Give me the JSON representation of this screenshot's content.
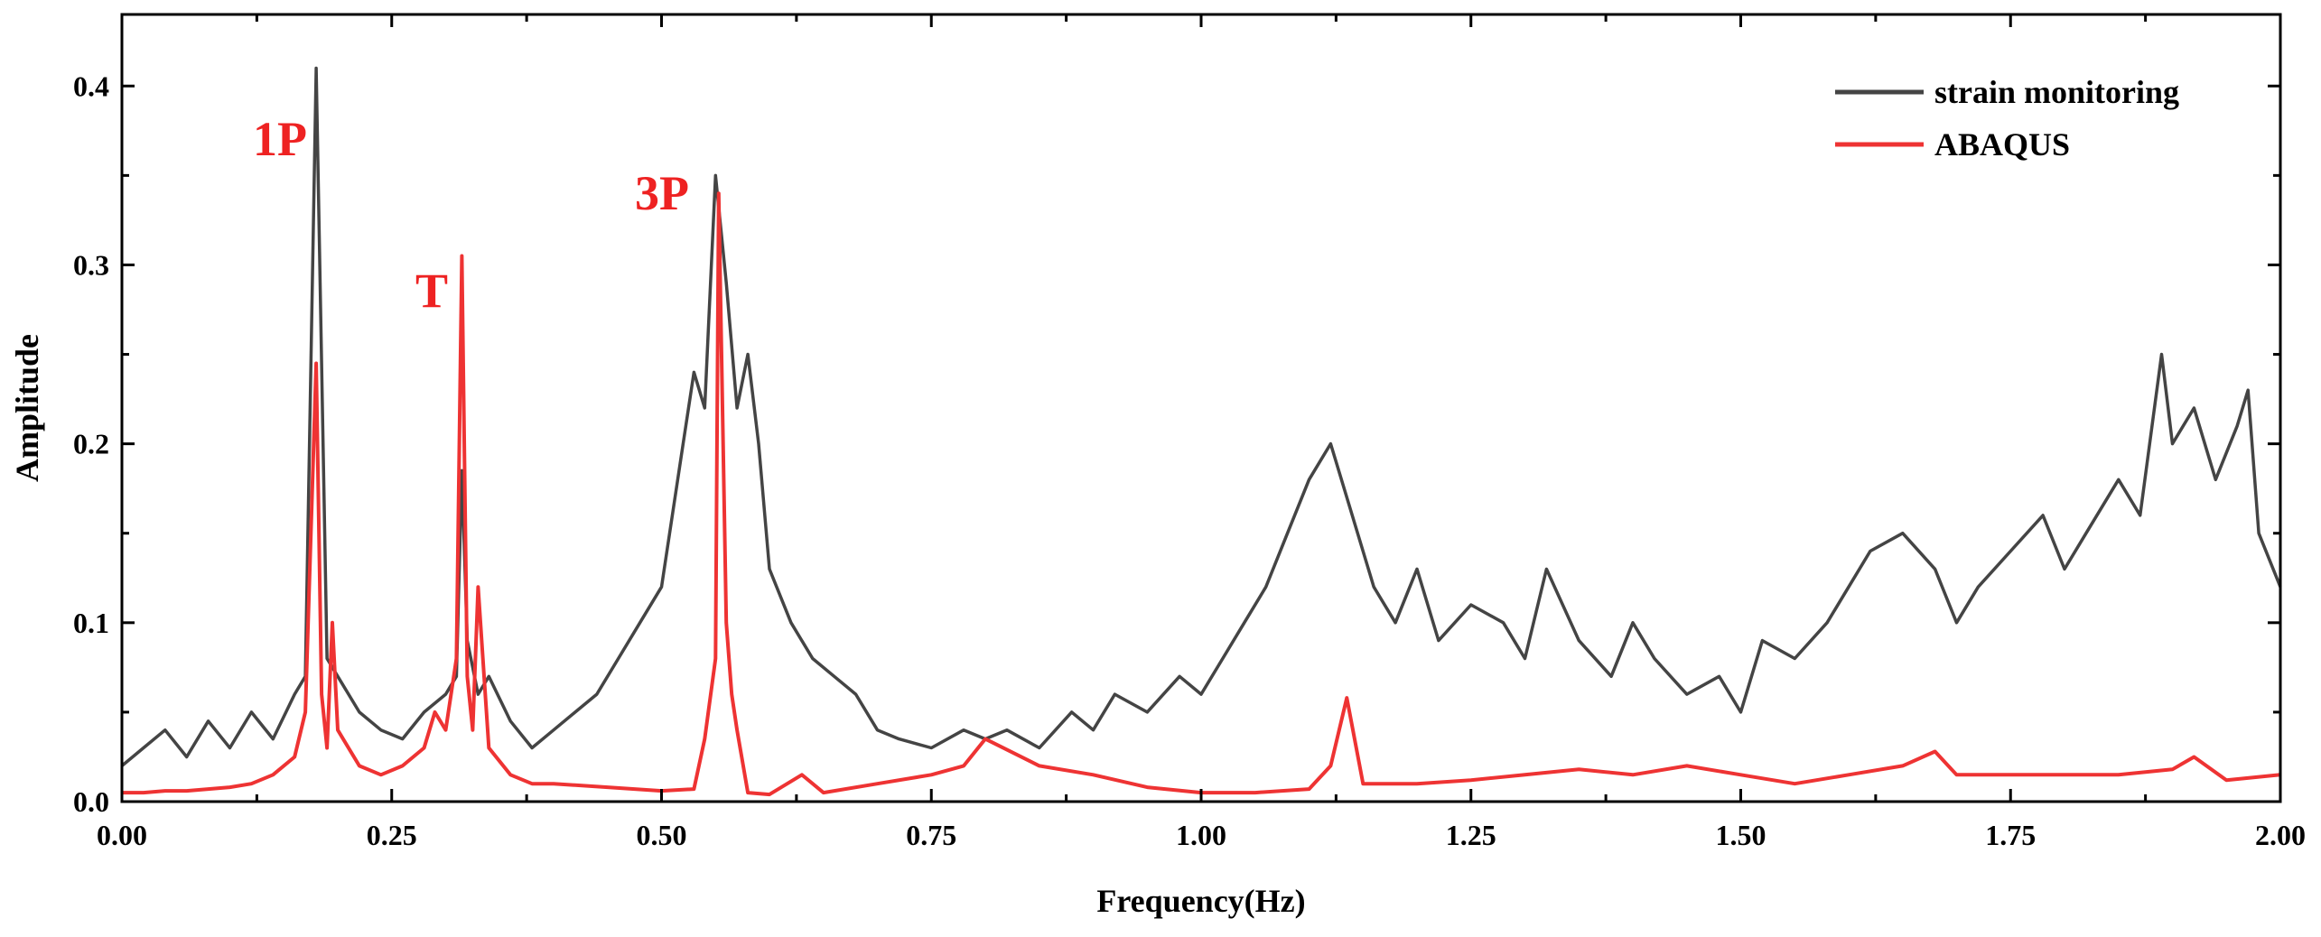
{
  "chart_data": {
    "type": "line",
    "title": "",
    "xlabel": "Frequency(Hz)",
    "ylabel": "Amplitude",
    "xlim": [
      0,
      2.0
    ],
    "ylim": [
      0,
      0.44
    ],
    "x_ticks": [
      "0.00",
      "0.25",
      "0.50",
      "0.75",
      "1.00",
      "1.25",
      "1.50",
      "1.75",
      "2.00"
    ],
    "y_ticks": [
      "0.0",
      "0.1",
      "0.2",
      "0.3",
      "0.4"
    ],
    "grid": false,
    "legend_position": "top-right",
    "annotations": [
      {
        "text": "1P",
        "x": 0.18,
        "color": "#ee2222"
      },
      {
        "text": "T",
        "x": 0.315,
        "color": "#ee2222"
      },
      {
        "text": "3P",
        "x": 0.553,
        "color": "#ee2222"
      }
    ],
    "series": [
      {
        "name": "strain monitoring",
        "color": "#444444",
        "x": [
          0.0,
          0.02,
          0.04,
          0.06,
          0.08,
          0.1,
          0.12,
          0.14,
          0.16,
          0.17,
          0.18,
          0.19,
          0.2,
          0.22,
          0.24,
          0.26,
          0.28,
          0.3,
          0.31,
          0.315,
          0.32,
          0.33,
          0.34,
          0.36,
          0.38,
          0.4,
          0.42,
          0.44,
          0.46,
          0.48,
          0.5,
          0.52,
          0.53,
          0.54,
          0.55,
          0.56,
          0.57,
          0.58,
          0.59,
          0.6,
          0.62,
          0.64,
          0.66,
          0.68,
          0.7,
          0.72,
          0.75,
          0.78,
          0.8,
          0.82,
          0.85,
          0.88,
          0.9,
          0.92,
          0.95,
          0.98,
          1.0,
          1.02,
          1.04,
          1.06,
          1.08,
          1.1,
          1.12,
          1.14,
          1.16,
          1.18,
          1.2,
          1.22,
          1.25,
          1.28,
          1.3,
          1.32,
          1.35,
          1.38,
          1.4,
          1.42,
          1.45,
          1.48,
          1.5,
          1.52,
          1.55,
          1.58,
          1.6,
          1.62,
          1.65,
          1.68,
          1.7,
          1.72,
          1.75,
          1.78,
          1.8,
          1.82,
          1.85,
          1.87,
          1.89,
          1.9,
          1.92,
          1.94,
          1.96,
          1.97,
          1.98,
          2.0
        ],
        "values": [
          0.02,
          0.03,
          0.04,
          0.025,
          0.045,
          0.03,
          0.05,
          0.035,
          0.06,
          0.07,
          0.41,
          0.08,
          0.07,
          0.05,
          0.04,
          0.035,
          0.05,
          0.06,
          0.07,
          0.185,
          0.09,
          0.06,
          0.07,
          0.045,
          0.03,
          0.04,
          0.05,
          0.06,
          0.08,
          0.1,
          0.12,
          0.2,
          0.24,
          0.22,
          0.35,
          0.29,
          0.22,
          0.25,
          0.2,
          0.13,
          0.1,
          0.08,
          0.07,
          0.06,
          0.04,
          0.035,
          0.03,
          0.04,
          0.035,
          0.04,
          0.03,
          0.05,
          0.04,
          0.06,
          0.05,
          0.07,
          0.06,
          0.08,
          0.1,
          0.12,
          0.15,
          0.18,
          0.2,
          0.16,
          0.12,
          0.1,
          0.13,
          0.09,
          0.11,
          0.1,
          0.08,
          0.13,
          0.09,
          0.07,
          0.1,
          0.08,
          0.06,
          0.07,
          0.05,
          0.09,
          0.08,
          0.1,
          0.12,
          0.14,
          0.15,
          0.13,
          0.1,
          0.12,
          0.14,
          0.16,
          0.13,
          0.15,
          0.18,
          0.16,
          0.25,
          0.2,
          0.22,
          0.18,
          0.21,
          0.23,
          0.15,
          0.12
        ]
      },
      {
        "name": "ABAQUS",
        "color": "#ee3333",
        "x": [
          0.0,
          0.02,
          0.04,
          0.06,
          0.08,
          0.1,
          0.12,
          0.14,
          0.16,
          0.17,
          0.18,
          0.185,
          0.19,
          0.195,
          0.2,
          0.22,
          0.24,
          0.26,
          0.28,
          0.29,
          0.3,
          0.31,
          0.315,
          0.32,
          0.325,
          0.33,
          0.34,
          0.36,
          0.38,
          0.4,
          0.45,
          0.5,
          0.53,
          0.54,
          0.55,
          0.553,
          0.56,
          0.565,
          0.57,
          0.58,
          0.6,
          0.63,
          0.65,
          0.7,
          0.75,
          0.78,
          0.8,
          0.85,
          0.9,
          0.95,
          1.0,
          1.05,
          1.1,
          1.12,
          1.135,
          1.15,
          1.2,
          1.25,
          1.3,
          1.35,
          1.4,
          1.45,
          1.5,
          1.55,
          1.6,
          1.65,
          1.68,
          1.7,
          1.75,
          1.8,
          1.85,
          1.9,
          1.92,
          1.95,
          2.0
        ],
        "values": [
          0.005,
          0.005,
          0.006,
          0.006,
          0.007,
          0.008,
          0.01,
          0.015,
          0.025,
          0.05,
          0.245,
          0.06,
          0.03,
          0.1,
          0.04,
          0.02,
          0.015,
          0.02,
          0.03,
          0.05,
          0.04,
          0.08,
          0.305,
          0.07,
          0.04,
          0.12,
          0.03,
          0.015,
          0.01,
          0.01,
          0.008,
          0.006,
          0.007,
          0.035,
          0.08,
          0.34,
          0.1,
          0.06,
          0.04,
          0.005,
          0.004,
          0.015,
          0.005,
          0.01,
          0.015,
          0.02,
          0.035,
          0.02,
          0.015,
          0.008,
          0.005,
          0.005,
          0.007,
          0.02,
          0.058,
          0.01,
          0.01,
          0.012,
          0.015,
          0.018,
          0.015,
          0.02,
          0.015,
          0.01,
          0.015,
          0.02,
          0.028,
          0.015,
          0.015,
          0.015,
          0.015,
          0.018,
          0.025,
          0.012,
          0.015
        ]
      }
    ]
  }
}
